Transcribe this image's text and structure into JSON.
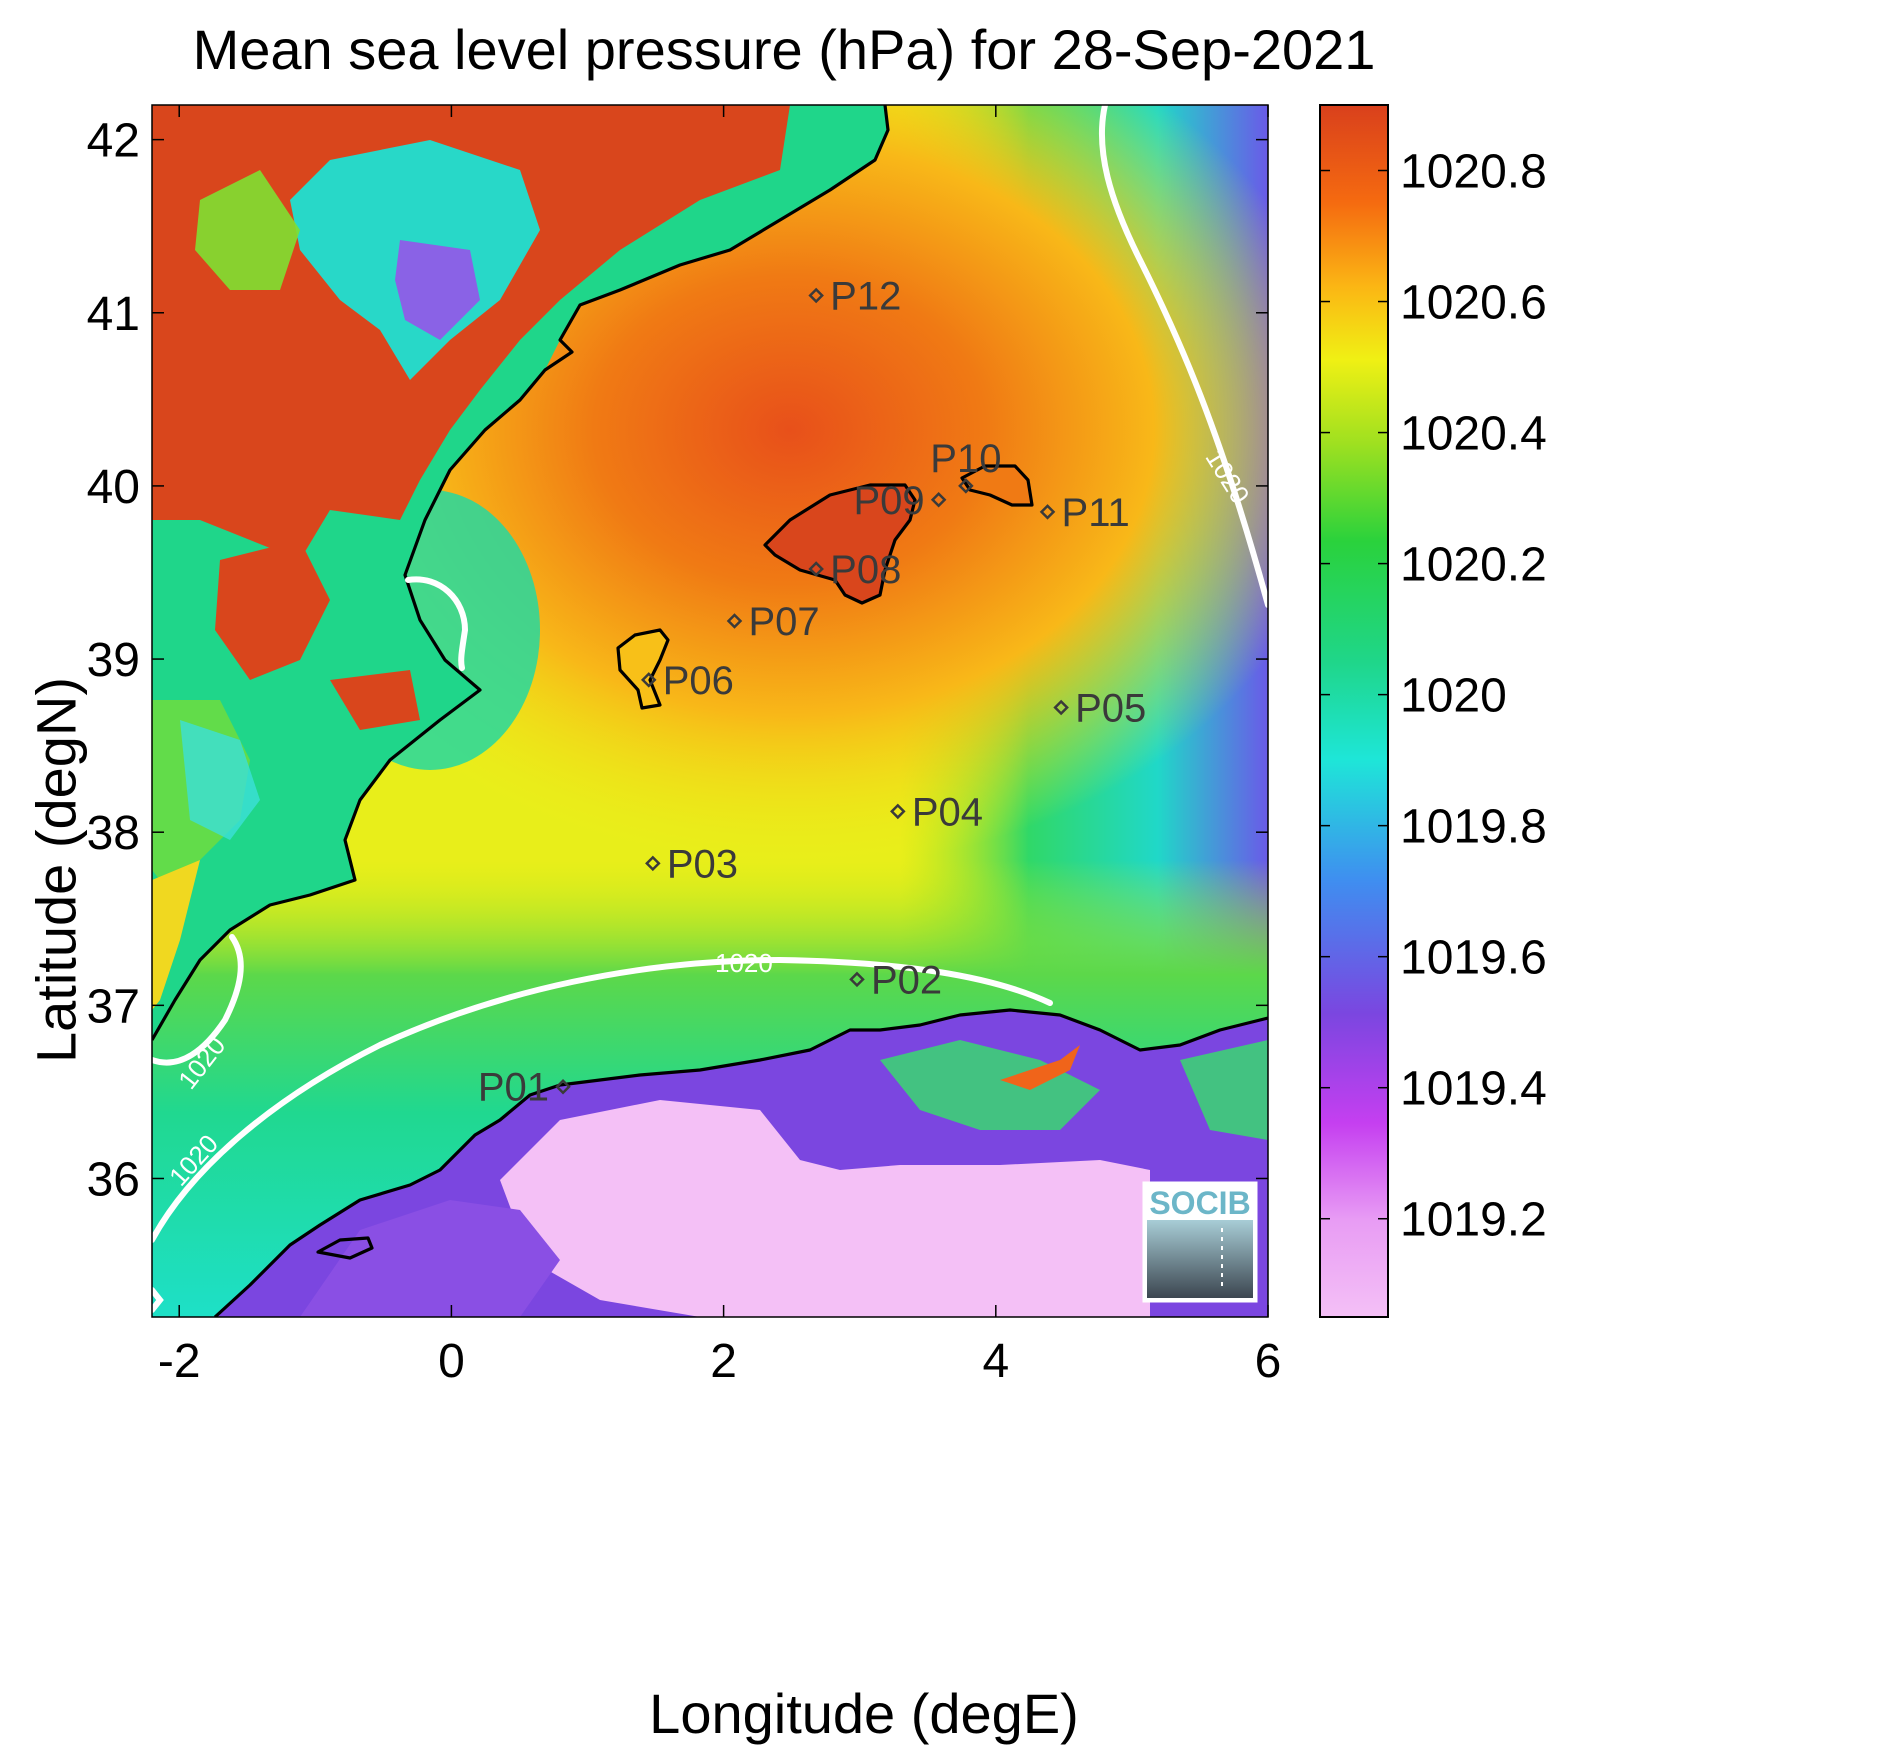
{
  "title": "Mean sea level pressure (hPa) for 28-Sep-2021",
  "xlabel": "Longitude (degE)",
  "ylabel": "Latitude (degN)",
  "logo_text": "SOCIB",
  "map_data": {
    "xlim": [
      -2.2,
      6.0
    ],
    "ylim": [
      35.2,
      42.2
    ],
    "x_ticks": [
      -2,
      0,
      2,
      4,
      6
    ],
    "y_ticks": [
      36,
      37,
      38,
      39,
      40,
      41,
      42
    ],
    "contour_label": "1020",
    "stations": [
      {
        "name": "P01",
        "lon": 0.82,
        "lat": 36.53,
        "label_side": "left"
      },
      {
        "name": "P02",
        "lon": 2.98,
        "lat": 37.15,
        "label_side": "right"
      },
      {
        "name": "P03",
        "lon": 1.48,
        "lat": 37.82,
        "label_side": "right"
      },
      {
        "name": "P04",
        "lon": 3.28,
        "lat": 38.12,
        "label_side": "right"
      },
      {
        "name": "P05",
        "lon": 4.48,
        "lat": 38.72,
        "label_side": "right"
      },
      {
        "name": "P06",
        "lon": 1.45,
        "lat": 38.88,
        "label_side": "right"
      },
      {
        "name": "P07",
        "lon": 2.08,
        "lat": 39.22,
        "label_side": "right"
      },
      {
        "name": "P08",
        "lon": 2.68,
        "lat": 39.52,
        "label_side": "right"
      },
      {
        "name": "P09",
        "lon": 3.58,
        "lat": 39.92,
        "label_side": "left"
      },
      {
        "name": "P10",
        "lon": 3.78,
        "lat": 40.0,
        "label_side": "above"
      },
      {
        "name": "P11",
        "lon": 4.38,
        "lat": 39.85,
        "label_side": "right"
      },
      {
        "name": "P12",
        "lon": 2.68,
        "lat": 41.1,
        "label_side": "right"
      }
    ]
  },
  "colorbar": {
    "label": "",
    "range": [
      1019.05,
      1020.9
    ],
    "ticks": [
      1019.2,
      1019.4,
      1019.6,
      1019.8,
      1020,
      1020.2,
      1020.4,
      1020.6,
      1020.8
    ],
    "tick_labels": [
      "1019.2",
      "1019.4",
      "1019.6",
      "1019.8",
      "1020",
      "1020.2",
      "1020.4",
      "1020.6",
      "1020.8"
    ],
    "colors": [
      "#f4c0f6",
      "#c53ff0",
      "#7b46e0",
      "#3f8ef0",
      "#1ee6d8",
      "#1fd68a",
      "#2ad23c",
      "#9ee020",
      "#f0f014",
      "#fbb614",
      "#f56a10",
      "#d9401c"
    ]
  }
}
